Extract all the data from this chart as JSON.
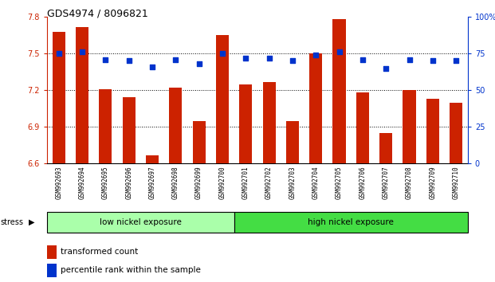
{
  "title": "GDS4974 / 8096821",
  "samples": [
    "GSM992693",
    "GSM992694",
    "GSM992695",
    "GSM992696",
    "GSM992697",
    "GSM992698",
    "GSM992699",
    "GSM992700",
    "GSM992701",
    "GSM992702",
    "GSM992703",
    "GSM992704",
    "GSM992705",
    "GSM992706",
    "GSM992707",
    "GSM992708",
    "GSM992709",
    "GSM992710"
  ],
  "bar_values": [
    7.68,
    7.72,
    7.21,
    7.14,
    6.67,
    7.22,
    6.95,
    7.65,
    7.25,
    7.27,
    6.95,
    7.5,
    7.78,
    7.18,
    6.85,
    7.2,
    7.13,
    7.1
  ],
  "dot_values": [
    75,
    76,
    71,
    70,
    66,
    71,
    68,
    75,
    72,
    72,
    70,
    74,
    76,
    71,
    65,
    71,
    70,
    70
  ],
  "bar_color": "#cc2200",
  "dot_color": "#0033cc",
  "ylim_left": [
    6.6,
    7.8
  ],
  "ylim_right": [
    0,
    100
  ],
  "yticks_left": [
    6.6,
    6.9,
    7.2,
    7.5,
    7.8
  ],
  "yticks_right": [
    0,
    25,
    50,
    75,
    100
  ],
  "group1_label": "low nickel exposure",
  "group2_label": "high nickel exposure",
  "group1_count": 8,
  "group2_count": 10,
  "group1_color": "#aaffaa",
  "group2_color": "#44dd44",
  "stress_label": "stress",
  "legend_bar_label": "transformed count",
  "legend_dot_label": "percentile rank within the sample",
  "tick_bg_color": "#d8d8d8"
}
